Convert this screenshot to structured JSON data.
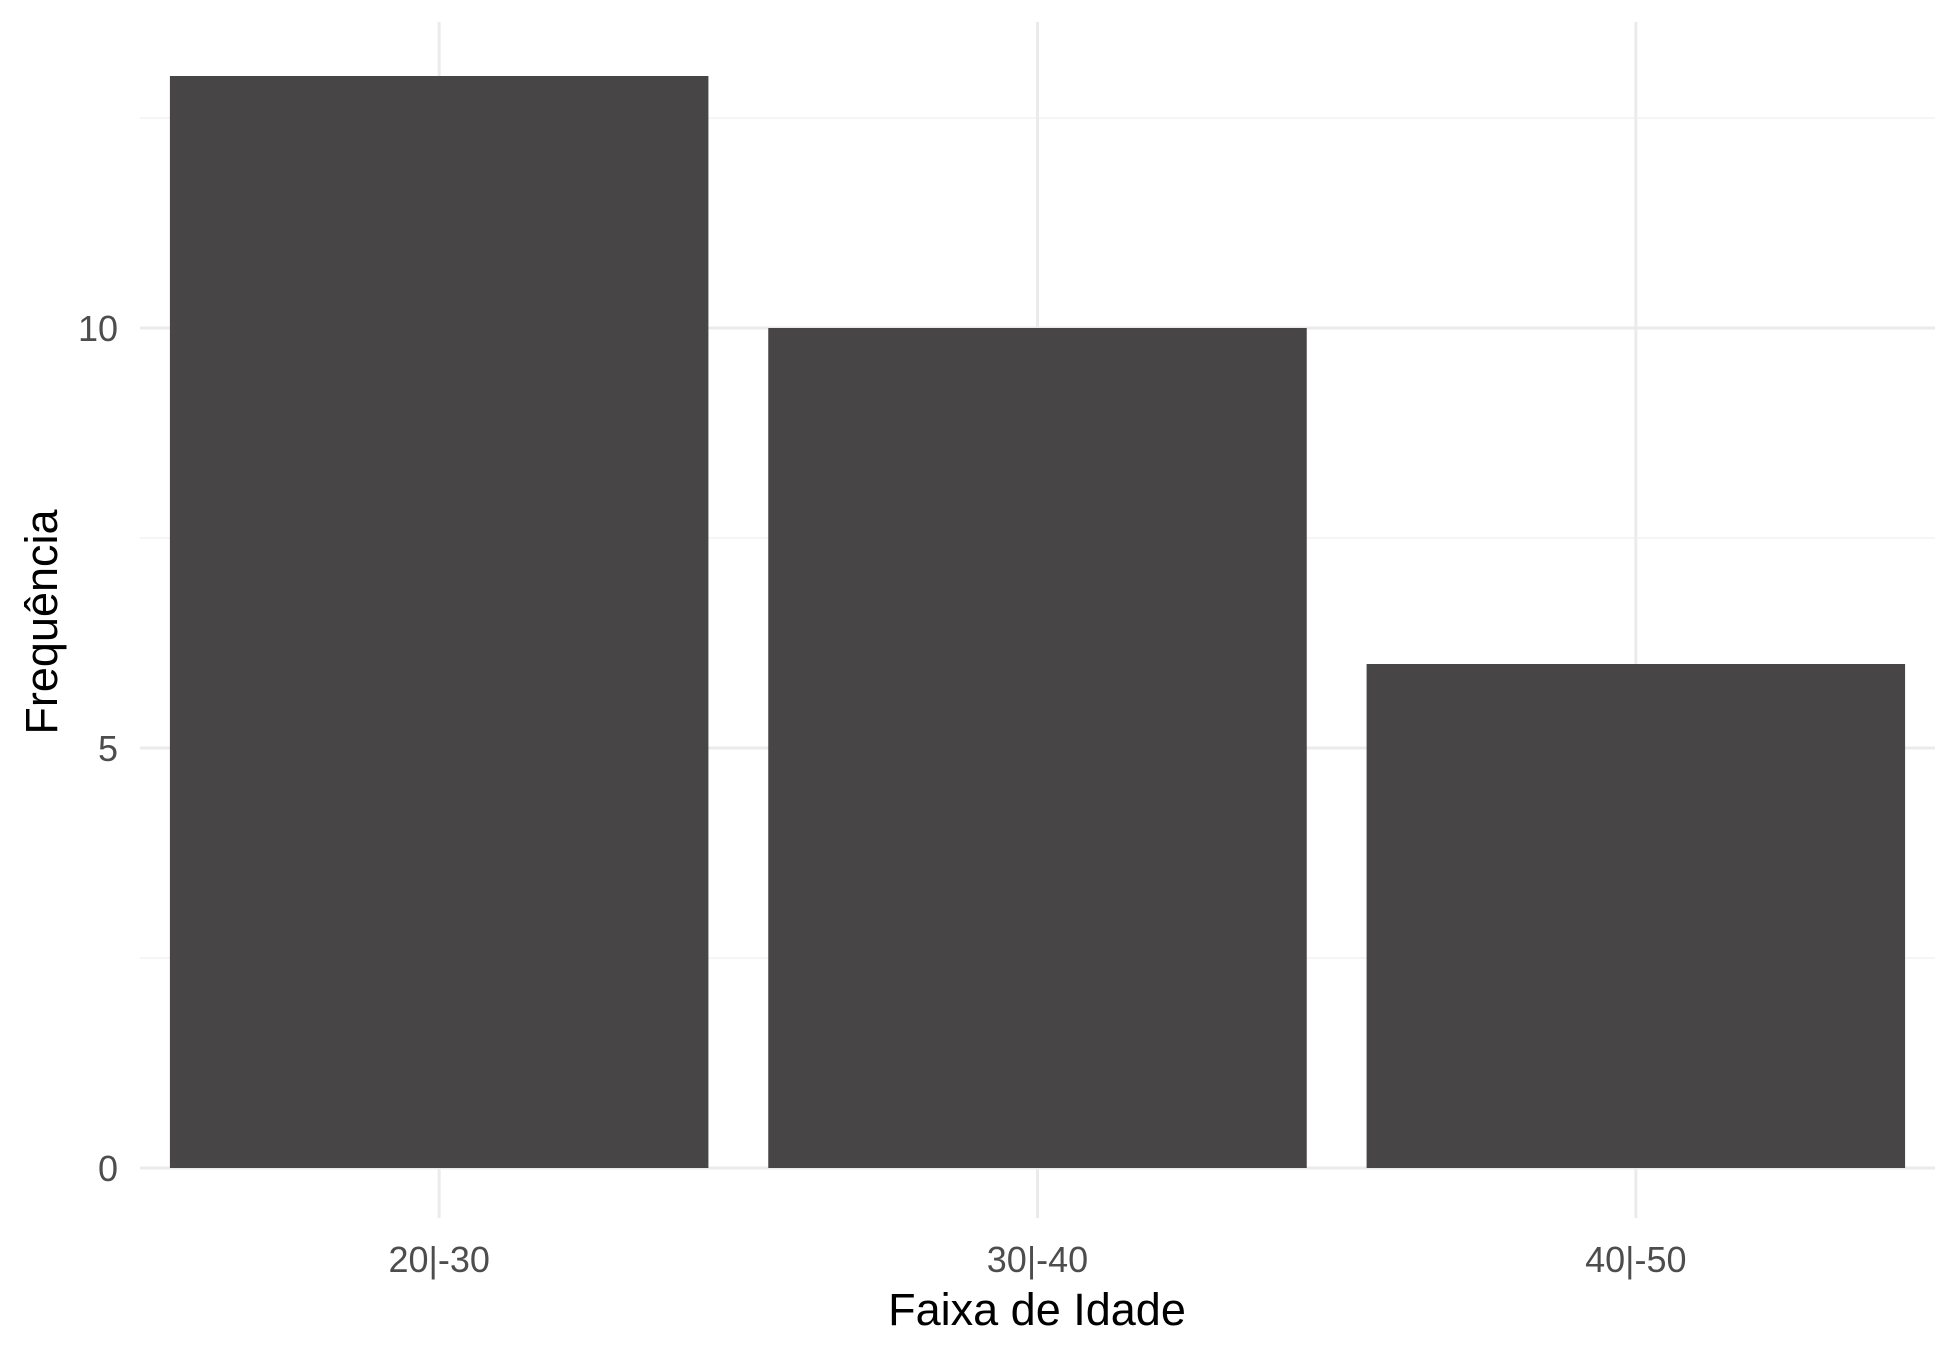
{
  "chart_data": {
    "type": "bar",
    "categories": [
      "20|-30",
      "30|-40",
      "40|-50"
    ],
    "values": [
      13,
      10,
      6
    ],
    "title": "",
    "xlabel": "Faixa de Idade",
    "ylabel": "Frequência",
    "ylim": [
      0,
      13.65
    ],
    "yticks": [
      0,
      5,
      10
    ],
    "grid": true,
    "legend": "none",
    "colors": {
      "bar": "#484546",
      "grid_major": "#ebebeb",
      "grid_minor": "#f2f2f2",
      "tick_text": "#4d4d4d",
      "axis_title": "#000000",
      "background": "#ffffff"
    }
  }
}
